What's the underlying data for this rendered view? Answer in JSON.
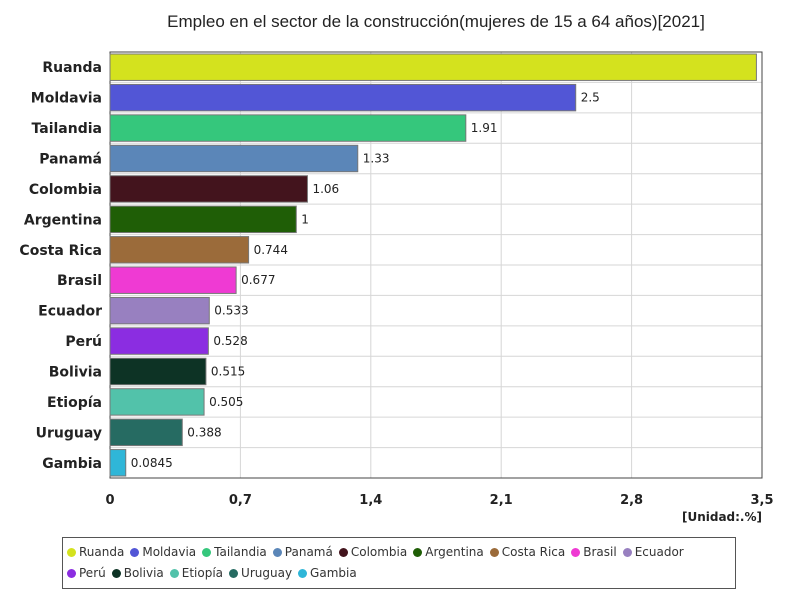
{
  "chart_data": {
    "type": "bar",
    "orientation": "horizontal",
    "title": "Empleo en el sector de la construcción(mujeres de 15 a 64 años)[2021]",
    "unit_label": "[Unidad:.%]",
    "xlim": [
      0,
      3.5
    ],
    "x_ticks": [
      "0",
      "0,7",
      "1,4",
      "2,1",
      "2,8",
      "3,5"
    ],
    "x_tick_values": [
      0,
      0.7,
      1.4,
      2.1,
      2.8,
      3.5
    ],
    "grid": true,
    "legend_position": "bottom",
    "categories": [
      "Ruanda",
      "Moldavia",
      "Tailandia",
      "Panamá",
      "Colombia",
      "Argentina",
      "Costa Rica",
      "Brasil",
      "Ecuador",
      "Perú",
      "Bolivia",
      "Etiopía",
      "Uruguay",
      "Gambia"
    ],
    "values": [
      3.47,
      2.5,
      1.91,
      1.33,
      1.06,
      1,
      0.744,
      0.677,
      0.533,
      0.528,
      0.515,
      0.505,
      0.388,
      0.0845
    ],
    "value_labels": [
      "",
      "2.5",
      "1.91",
      "1.33",
      "1.06",
      "1",
      "0.744",
      "0.677",
      "0.533",
      "0.528",
      "0.515",
      "0.505",
      "0.388",
      "0.0845"
    ],
    "colors": [
      "#d4e21e",
      "#5256d6",
      "#35c77c",
      "#5b86b8",
      "#43141d",
      "#1f5e06",
      "#9b6b3a",
      "#ef3ad3",
      "#9880c0",
      "#8b2de1",
      "#0d3325",
      "#52c2aa",
      "#266b62",
      "#2fb6d8"
    ]
  }
}
